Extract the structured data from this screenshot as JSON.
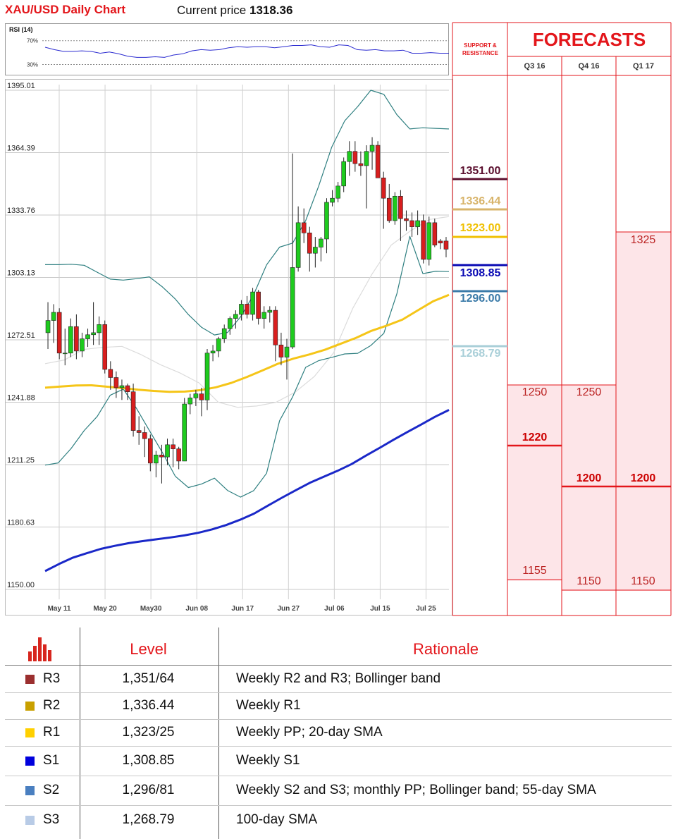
{
  "header": {
    "title": "XAU/USD Daily Chart",
    "price_label": "Current price ",
    "price_value": "1318.36"
  },
  "rsi": {
    "label": "RSI (14)",
    "levels": [
      "70%",
      "30%"
    ]
  },
  "panel": {
    "sr_label_line1": "SUPPORT &",
    "sr_label_line2": "RESISTANCE",
    "forecast_title": "FORECASTS",
    "quarters": [
      "Q3 16",
      "Q4 16",
      "Q1 17"
    ]
  },
  "sr_levels": [
    {
      "value": "1351.00",
      "color": "#5b0f2e"
    },
    {
      "value": "1336.44",
      "color": "#d8b46a"
    },
    {
      "value": "1323.00",
      "color": "#f0c000"
    },
    {
      "value": "1308.85",
      "color": "#0a0ab4"
    },
    {
      "value": "1296.00",
      "color": "#3a7aa8"
    },
    {
      "value": "1268.79",
      "color": "#a9cfd8"
    }
  ],
  "forecasts": {
    "q3_16": {
      "high": "1250",
      "mid": "1220",
      "low": "1155"
    },
    "q4_16": {
      "high": "1250",
      "mid": "1200",
      "low": "1150"
    },
    "q1_17": {
      "high": "1325",
      "mid": "1200",
      "low": "1150"
    }
  },
  "table": {
    "headers": {
      "level": "Level",
      "rationale": "Rationale"
    },
    "rows": [
      {
        "name": "R3",
        "level": "1,351/64",
        "rationale": "Weekly R2 and R3; Bollinger band",
        "color": "#9b2f2f"
      },
      {
        "name": "R2",
        "level": "1,336.44",
        "rationale": "Weekly R1",
        "color": "#c9a000"
      },
      {
        "name": "R1",
        "level": "1,323/25",
        "rationale": "Weekly PP; 20-day SMA",
        "color": "#ffd000"
      },
      {
        "name": "S1",
        "level": "1,308.85",
        "rationale": "Weekly S1",
        "color": "#0000dd"
      },
      {
        "name": "S2",
        "level": "1,296/81",
        "rationale": "Weekly S2 and S3; monthly PP; Bollinger band; 55-day SMA",
        "color": "#4a7fc0"
      },
      {
        "name": "S3",
        "level": "1,268.79",
        "rationale": "100-day SMA",
        "color": "#b8cbe6"
      }
    ]
  },
  "chart_data": {
    "type": "candlestick",
    "title": "XAU/USD Daily Chart",
    "y_ticks": [
      "1395.01",
      "1364.39",
      "1333.76",
      "1303.13",
      "1272.51",
      "1241.88",
      "1211.25",
      "1180.63",
      "1150.00"
    ],
    "ylim": [
      1150.0,
      1395.01
    ],
    "x_ticks": [
      "May 11",
      "May 20",
      "May30",
      "Jun 08",
      "Jun 17",
      "Jun 27",
      "Jul 06",
      "Jul 15",
      "Jul 25"
    ],
    "grid": true,
    "candles": [
      {
        "o": 1276,
        "h": 1291,
        "l": 1268,
        "c": 1282
      },
      {
        "o": 1282,
        "h": 1290,
        "l": 1271,
        "c": 1286
      },
      {
        "o": 1286,
        "h": 1288,
        "l": 1263,
        "c": 1266
      },
      {
        "o": 1266,
        "h": 1278,
        "l": 1260,
        "c": 1266
      },
      {
        "o": 1266,
        "h": 1283,
        "l": 1264,
        "c": 1279
      },
      {
        "o": 1279,
        "h": 1285,
        "l": 1263,
        "c": 1267
      },
      {
        "o": 1267,
        "h": 1276,
        "l": 1264,
        "c": 1273
      },
      {
        "o": 1273,
        "h": 1278,
        "l": 1269,
        "c": 1275
      },
      {
        "o": 1275,
        "h": 1291,
        "l": 1270,
        "c": 1276
      },
      {
        "o": 1276,
        "h": 1284,
        "l": 1270,
        "c": 1280
      },
      {
        "o": 1280,
        "h": 1282,
        "l": 1256,
        "c": 1258
      },
      {
        "o": 1258,
        "h": 1262,
        "l": 1248,
        "c": 1254
      },
      {
        "o": 1254,
        "h": 1257,
        "l": 1244,
        "c": 1249
      },
      {
        "o": 1249,
        "h": 1253,
        "l": 1243,
        "c": 1250
      },
      {
        "o": 1250,
        "h": 1251,
        "l": 1243,
        "c": 1247
      },
      {
        "o": 1247,
        "h": 1251,
        "l": 1225,
        "c": 1228
      },
      {
        "o": 1228,
        "h": 1235,
        "l": 1221,
        "c": 1227
      },
      {
        "o": 1227,
        "h": 1230,
        "l": 1215,
        "c": 1224
      },
      {
        "o": 1224,
        "h": 1226,
        "l": 1208,
        "c": 1212
      },
      {
        "o": 1212,
        "h": 1218,
        "l": 1205,
        "c": 1216
      },
      {
        "o": 1216,
        "h": 1221,
        "l": 1202,
        "c": 1215
      },
      {
        "o": 1215,
        "h": 1224,
        "l": 1211,
        "c": 1221
      },
      {
        "o": 1221,
        "h": 1224,
        "l": 1210,
        "c": 1219
      },
      {
        "o": 1219,
        "h": 1220,
        "l": 1209,
        "c": 1213
      },
      {
        "o": 1213,
        "h": 1244,
        "l": 1213,
        "c": 1241
      },
      {
        "o": 1241,
        "h": 1246,
        "l": 1236,
        "c": 1244
      },
      {
        "o": 1244,
        "h": 1248,
        "l": 1240,
        "c": 1246
      },
      {
        "o": 1246,
        "h": 1249,
        "l": 1235,
        "c": 1243
      },
      {
        "o": 1243,
        "h": 1268,
        "l": 1238,
        "c": 1266
      },
      {
        "o": 1266,
        "h": 1270,
        "l": 1262,
        "c": 1267
      },
      {
        "o": 1267,
        "h": 1274,
        "l": 1264,
        "c": 1273
      },
      {
        "o": 1273,
        "h": 1280,
        "l": 1271,
        "c": 1278
      },
      {
        "o": 1278,
        "h": 1284,
        "l": 1275,
        "c": 1283
      },
      {
        "o": 1283,
        "h": 1287,
        "l": 1278,
        "c": 1285
      },
      {
        "o": 1285,
        "h": 1292,
        "l": 1282,
        "c": 1290
      },
      {
        "o": 1290,
        "h": 1294,
        "l": 1283,
        "c": 1285
      },
      {
        "o": 1285,
        "h": 1298,
        "l": 1282,
        "c": 1296
      },
      {
        "o": 1296,
        "h": 1297,
        "l": 1280,
        "c": 1283
      },
      {
        "o": 1283,
        "h": 1289,
        "l": 1278,
        "c": 1286
      },
      {
        "o": 1286,
        "h": 1289,
        "l": 1281,
        "c": 1287
      },
      {
        "o": 1287,
        "h": 1289,
        "l": 1262,
        "c": 1270
      },
      {
        "o": 1270,
        "h": 1276,
        "l": 1260,
        "c": 1264
      },
      {
        "o": 1264,
        "h": 1273,
        "l": 1253,
        "c": 1269
      },
      {
        "o": 1269,
        "h": 1364,
        "l": 1268,
        "c": 1308
      },
      {
        "o": 1308,
        "h": 1338,
        "l": 1306,
        "c": 1330
      },
      {
        "o": 1330,
        "h": 1337,
        "l": 1320,
        "c": 1325
      },
      {
        "o": 1325,
        "h": 1328,
        "l": 1306,
        "c": 1315
      },
      {
        "o": 1315,
        "h": 1323,
        "l": 1308,
        "c": 1318
      },
      {
        "o": 1318,
        "h": 1323,
        "l": 1311,
        "c": 1322
      },
      {
        "o": 1322,
        "h": 1342,
        "l": 1315,
        "c": 1340
      },
      {
        "o": 1340,
        "h": 1346,
        "l": 1338,
        "c": 1342
      },
      {
        "o": 1342,
        "h": 1350,
        "l": 1340,
        "c": 1348
      },
      {
        "o": 1348,
        "h": 1362,
        "l": 1345,
        "c": 1360
      },
      {
        "o": 1360,
        "h": 1370,
        "l": 1353,
        "c": 1365
      },
      {
        "o": 1365,
        "h": 1370,
        "l": 1355,
        "c": 1359
      },
      {
        "o": 1359,
        "h": 1365,
        "l": 1353,
        "c": 1358
      },
      {
        "o": 1358,
        "h": 1368,
        "l": 1337,
        "c": 1365
      },
      {
        "o": 1365,
        "h": 1372,
        "l": 1356,
        "c": 1368
      },
      {
        "o": 1368,
        "h": 1370,
        "l": 1352,
        "c": 1352
      },
      {
        "o": 1352,
        "h": 1355,
        "l": 1327,
        "c": 1342
      },
      {
        "o": 1342,
        "h": 1349,
        "l": 1330,
        "c": 1331
      },
      {
        "o": 1331,
        "h": 1345,
        "l": 1329,
        "c": 1343
      },
      {
        "o": 1343,
        "h": 1346,
        "l": 1321,
        "c": 1332
      },
      {
        "o": 1332,
        "h": 1336,
        "l": 1326,
        "c": 1331
      },
      {
        "o": 1331,
        "h": 1335,
        "l": 1323,
        "c": 1328
      },
      {
        "o": 1328,
        "h": 1336,
        "l": 1324,
        "c": 1331
      },
      {
        "o": 1331,
        "h": 1334,
        "l": 1310,
        "c": 1312
      },
      {
        "o": 1312,
        "h": 1333,
        "l": 1309,
        "c": 1330
      },
      {
        "o": 1330,
        "h": 1332,
        "l": 1318,
        "c": 1319
      },
      {
        "o": 1321,
        "h": 1322,
        "l": 1317,
        "c": 1320
      },
      {
        "o": 1321,
        "h": 1323,
        "l": 1313,
        "c": 1317
      }
    ],
    "sma_100": [
      1249,
      1249.6,
      1250.1,
      1250.2,
      1249.5,
      1248.8,
      1248,
      1247.4,
      1247,
      1247.1,
      1247.8,
      1249.2,
      1251.4,
      1254.3,
      1257.5,
      1260.8,
      1263.3,
      1265.3,
      1267.6,
      1270.5,
      1273.4,
      1276.9,
      1279.5,
      1282.4,
      1287,
      1291.5,
      1294.6
    ],
    "sma_200": [
      1159,
      1162.5,
      1165.6,
      1167.8,
      1169.9,
      1171.4,
      1172.7,
      1173.7,
      1174.6,
      1175.5,
      1176.5,
      1177.8,
      1179.5,
      1181.6,
      1184.2,
      1187.2,
      1191.1,
      1195,
      1198.7,
      1202.3,
      1205.3,
      1208.2,
      1211.5,
      1215.5,
      1219.4,
      1223.4,
      1227.2,
      1230.9,
      1234.7,
      1238.1
    ],
    "bb_upper": [
      1309.4,
      1309.4,
      1309.6,
      1309.1,
      1305.7,
      1302.3,
      1301.8,
      1302.5,
      1303.4,
      1298.5,
      1292.5,
      1284.9,
      1278.7,
      1274.9,
      1276.1,
      1283.8,
      1294.5,
      1309.3,
      1318,
      1320,
      1331,
      1348,
      1367,
      1380,
      1387,
      1395,
      1393,
      1383,
      1376,
      1376.6,
      1376.3,
      1376
    ],
    "bb_lower": [
      1211,
      1212.1,
      1219.2,
      1228,
      1234.9,
      1245.3,
      1248.3,
      1239,
      1228,
      1217.2,
      1205.5,
      1200,
      1201.7,
      1204.6,
      1198.6,
      1195.3,
      1198.4,
      1207,
      1232.8,
      1244.5,
      1259,
      1262.3,
      1263.9,
      1265.6,
      1265.9,
      1269.7,
      1275.7,
      1295.1,
      1323.3,
      1305,
      1306.2,
      1306
    ],
    "bb_mid": [
      1260.8,
      1262.6,
      1267.8,
      1268.8,
      1269.3,
      1265.2,
      1260.3,
      1256.3,
      1251.4,
      1241.9,
      1239.4,
      1240,
      1241.8,
      1246.8,
      1254.5,
      1266.1,
      1288,
      1304.8,
      1319,
      1326,
      1331.6,
      1333
    ],
    "rsi": [
      59,
      55,
      52,
      52,
      53,
      52,
      49,
      51,
      48,
      44,
      42,
      42,
      43,
      42,
      46,
      48,
      53,
      55,
      54,
      55,
      58,
      60,
      59,
      60,
      60,
      58,
      60,
      62,
      62,
      63,
      60,
      59,
      63,
      62,
      55,
      54,
      55,
      53,
      53,
      54,
      49,
      49,
      50,
      49,
      49
    ],
    "rsi_bounds": [
      0,
      100
    ]
  }
}
